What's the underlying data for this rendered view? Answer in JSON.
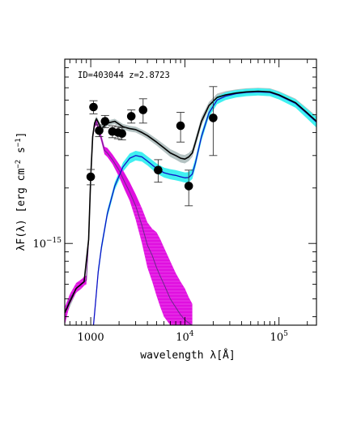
{
  "chart_data": {
    "type": "line",
    "annotation": "ID=403044  z=2.8723",
    "xlabel": "wavelength λ[Å]",
    "ylabel_main": "λF(λ)  [erg cm",
    "ylabel_sup1": "−2",
    "ylabel_mid": " s",
    "ylabel_sup2": "−1",
    "ylabel_end": "]",
    "xscale": "log",
    "yscale": "log",
    "xlim": [
      530,
      250000
    ],
    "ylim": [
      3.6e-16,
      1e-14
    ],
    "x_ticks": [
      {
        "value": 1000,
        "base": "1000",
        "exp": ""
      },
      {
        "value": 10000,
        "base": "10",
        "exp": "4"
      },
      {
        "value": 100000,
        "base": "10",
        "exp": "5"
      }
    ],
    "y_ticks": [
      {
        "value": 1e-15,
        "base": "10",
        "exp": "−15"
      }
    ],
    "colors": {
      "total": "#000000",
      "total_band": "#b4c2c2",
      "stellar": "#1010c8",
      "stellar_band": "#40f0f0",
      "agn": "#6a2a8a",
      "agn_band": "#e010e0",
      "errorbar": "#333333"
    },
    "series": [
      {
        "key": "total",
        "x": [
          530,
          700,
          850,
          950,
          1000,
          1050,
          1100,
          1150,
          1200,
          1300,
          1500,
          1800,
          2200,
          2600,
          3000,
          3500,
          4000,
          5000,
          6000,
          7000,
          8000,
          9000,
          10000,
          11000,
          12000,
          13000,
          15000,
          18000,
          22000,
          27000,
          35000,
          45000,
          60000,
          80000,
          100000,
          150000,
          200000,
          250000
        ],
        "y": [
          4.2e-16,
          5.7e-16,
          6.2e-16,
          1.05e-15,
          2.3e-15,
          3.8e-15,
          4.5e-15,
          4.75e-15,
          4.55e-15,
          4.2e-15,
          4.5e-15,
          4.6e-15,
          4.3e-15,
          4.2e-15,
          4.15e-15,
          4e-15,
          3.85e-15,
          3.55e-15,
          3.3e-15,
          3.1e-15,
          3e-15,
          2.9e-15,
          2.87e-15,
          2.95e-15,
          3.1e-15,
          3.55e-15,
          4.6e-15,
          5.6e-15,
          6.2e-15,
          6.4e-15,
          6.55e-15,
          6.65e-15,
          6.7e-15,
          6.65e-15,
          6.4e-15,
          5.8e-15,
          5.1e-15,
          4.6e-15
        ],
        "band_lo": [
          3.9e-16,
          5.4e-16,
          5.9e-16,
          1e-15,
          2.2e-15,
          3.65e-15,
          4.35e-15,
          4.6e-15,
          4.4e-15,
          4.05e-15,
          4.35e-15,
          4.45e-15,
          4.15e-15,
          4.05e-15,
          4e-15,
          3.85e-15,
          3.7e-15,
          3.4e-15,
          3.15e-15,
          2.95e-15,
          2.85e-15,
          2.75e-15,
          2.72e-15,
          2.8e-15,
          2.95e-15,
          3.35e-15,
          4.35e-15,
          5.35e-15,
          5.9e-15,
          6.1e-15,
          6.25e-15,
          6.35e-15,
          6.4e-15,
          6.35e-15,
          6.1e-15,
          5.5e-15,
          4.8e-15,
          4.3e-15
        ],
        "band_hi": [
          4.5e-16,
          6e-16,
          6.5e-16,
          1.1e-15,
          2.4e-15,
          3.95e-15,
          4.65e-15,
          4.9e-15,
          4.7e-15,
          4.35e-15,
          4.65e-15,
          4.75e-15,
          4.45e-15,
          4.35e-15,
          4.3e-15,
          4.15e-15,
          4e-15,
          3.7e-15,
          3.45e-15,
          3.25e-15,
          3.15e-15,
          3.05e-15,
          3.02e-15,
          3.1e-15,
          3.25e-15,
          3.75e-15,
          4.85e-15,
          5.85e-15,
          6.5e-15,
          6.7e-15,
          6.85e-15,
          6.95e-15,
          7e-15,
          6.95e-15,
          6.7e-15,
          6.1e-15,
          5.4e-15,
          4.9e-15
        ]
      },
      {
        "key": "stellar",
        "x": [
          1070,
          1100,
          1150,
          1200,
          1300,
          1500,
          1800,
          2200,
          2600,
          3000,
          3500,
          4000,
          5000,
          6000,
          7000,
          8000,
          9000,
          10000,
          11000,
          12000,
          13000,
          15000,
          18000,
          22000,
          27000,
          35000,
          45000,
          60000,
          80000,
          100000,
          150000,
          200000,
          250000
        ],
        "y": [
          3.6e-16,
          4.2e-16,
          5.4e-16,
          7e-16,
          9.5e-16,
          1.45e-15,
          2.05e-15,
          2.6e-15,
          2.9e-15,
          3e-15,
          2.95e-15,
          2.8e-15,
          2.55e-15,
          2.42e-15,
          2.37e-15,
          2.34e-15,
          2.3e-15,
          2.27e-15,
          2.28e-15,
          2.38e-15,
          2.75e-15,
          3.8e-15,
          5.1e-15,
          6e-15,
          6.3e-15,
          6.5e-15,
          6.6e-15,
          6.65e-15,
          6.6e-15,
          6.35e-15,
          5.75e-15,
          5.05e-15,
          4.55e-15
        ],
        "band_lo": [
          3.6e-16,
          4e-16,
          5.1e-16,
          6.6e-16,
          9e-16,
          1.38e-15,
          1.95e-15,
          2.45e-15,
          2.72e-15,
          2.82e-15,
          2.78e-15,
          2.65e-15,
          2.4e-15,
          2.28e-15,
          2.23e-15,
          2.2e-15,
          2.17e-15,
          2.14e-15,
          2.15e-15,
          2.24e-15,
          2.6e-15,
          3.6e-15,
          4.85e-15,
          5.7e-15,
          6e-15,
          6.2e-15,
          6.3e-15,
          6.35e-15,
          6.3e-15,
          6.05e-15,
          5.45e-15,
          4.75e-15,
          4.25e-15
        ],
        "band_hi": [
          3.8e-16,
          4.4e-16,
          5.7e-16,
          7.4e-16,
          1e-15,
          1.52e-15,
          2.15e-15,
          2.75e-15,
          3.08e-15,
          3.18e-15,
          3.13e-15,
          2.97e-15,
          2.72e-15,
          2.58e-15,
          2.53e-15,
          2.5e-15,
          2.46e-15,
          2.43e-15,
          2.44e-15,
          2.54e-15,
          2.92e-15,
          4e-15,
          5.35e-15,
          6.3e-15,
          6.6e-15,
          6.8e-15,
          6.9e-15,
          6.95e-15,
          6.9e-15,
          6.65e-15,
          6.05e-15,
          5.35e-15,
          4.85e-15
        ]
      },
      {
        "key": "agn",
        "x": [
          530,
          600,
          700,
          800,
          850,
          900,
          950,
          1000,
          1050,
          1100,
          1150,
          1200,
          1300,
          1400,
          1500,
          1700,
          2000,
          2300,
          2600,
          3000,
          3500,
          4000,
          4500,
          5000,
          5500,
          6000,
          7000,
          8000,
          9000,
          10000,
          11000,
          12000
        ],
        "y": [
          4.2e-16,
          5e-16,
          5.7e-16,
          6e-16,
          6.2e-16,
          6.3e-16,
          1.05e-15,
          2.3e-15,
          3.8e-15,
          4.4e-15,
          4.55e-15,
          4.25e-15,
          3.7e-15,
          3.2e-15,
          3.1e-15,
          2.85e-15,
          2.5e-15,
          2.15e-15,
          1.9e-15,
          1.6e-15,
          1.25e-15,
          9.8e-16,
          8.6e-16,
          7.4e-16,
          6.6e-16,
          6e-16,
          5e-16,
          4.5e-16,
          4.1e-16,
          3.85e-16,
          3.7e-16,
          3.6e-16
        ],
        "band_lo": [
          3.6e-16,
          4.7e-16,
          5.4e-16,
          5.7e-16,
          5.9e-16,
          6e-16,
          1e-15,
          2.2e-15,
          3.65e-15,
          4.25e-15,
          4.4e-15,
          4.1e-15,
          3.55e-15,
          3.05e-15,
          2.95e-15,
          2.7e-15,
          2.3e-15,
          1.95e-15,
          1.7e-15,
          1.35e-15,
          1e-15,
          7.4e-16,
          6.2e-16,
          5.2e-16,
          4.5e-16,
          4e-16,
          3.6e-16,
          3.6e-16,
          3.6e-16,
          3.6e-16,
          3.6e-16,
          3.6e-16
        ],
        "band_hi": [
          4.5e-16,
          5.3e-16,
          6.1e-16,
          6.4e-16,
          6.6e-16,
          6.7e-16,
          1.1e-15,
          2.4e-15,
          3.95e-15,
          4.55e-15,
          4.7e-15,
          4.4e-15,
          3.85e-15,
          3.35e-15,
          3.3e-15,
          3.05e-15,
          2.7e-15,
          2.4e-15,
          2.15e-15,
          1.85e-15,
          1.55e-15,
          1.3e-15,
          1.2e-15,
          1.15e-15,
          1.05e-15,
          9.5e-16,
          8e-16,
          6.9e-16,
          6.2e-16,
          5.7e-16,
          5.1e-16,
          4.7e-16
        ]
      }
    ],
    "points": [
      {
        "x": 1000,
        "y": 2.3e-15,
        "err": [
          2.2e-16,
          2.2e-16
        ]
      },
      {
        "x": 1070,
        "y": 5.5e-15,
        "err": [
          4.5e-16,
          4.5e-16
        ]
      },
      {
        "x": 1230,
        "y": 4.1e-15,
        "err": [
          3e-16,
          3e-16
        ]
      },
      {
        "x": 1420,
        "y": 4.6e-15,
        "err": [
          3.5e-16,
          3.5e-16
        ]
      },
      {
        "x": 1700,
        "y": 4.05e-15,
        "err": [
          3e-16,
          3e-16
        ]
      },
      {
        "x": 1950,
        "y": 4e-15,
        "err": [
          3e-16,
          3e-16
        ]
      },
      {
        "x": 2150,
        "y": 3.95e-15,
        "err": [
          3e-16,
          3e-16
        ]
      },
      {
        "x": 2700,
        "y": 4.9e-15,
        "err": [
          4e-16,
          4e-16
        ]
      },
      {
        "x": 3600,
        "y": 5.3e-15,
        "err": [
          8e-16,
          8e-16
        ]
      },
      {
        "x": 5200,
        "y": 2.5e-15,
        "err": [
          3.5e-16,
          3.5e-16
        ]
      },
      {
        "x": 9000,
        "y": 4.35e-15,
        "err": [
          8e-16,
          8e-16
        ]
      },
      {
        "x": 11000,
        "y": 2.05e-15,
        "err": [
          4.5e-16,
          4.5e-16
        ]
      },
      {
        "x": 20000,
        "y": 4.8e-15,
        "err": [
          1.8e-15,
          2.3e-15
        ]
      }
    ]
  }
}
